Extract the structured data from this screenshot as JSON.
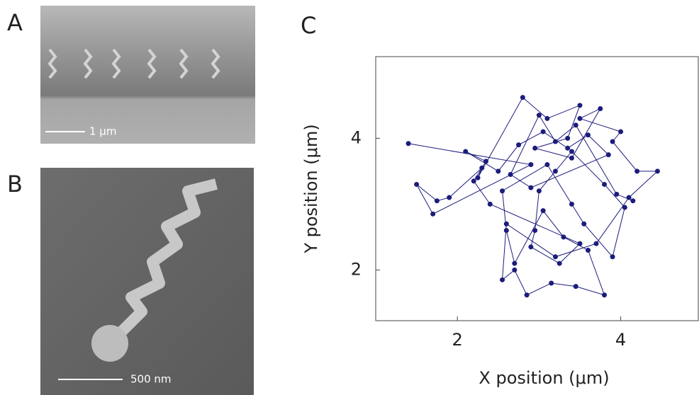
{
  "figure": {
    "panels": [
      {
        "label": "A",
        "scale_bar": "1 μm"
      },
      {
        "label": "B",
        "scale_bar": "500 nm"
      },
      {
        "label": "C"
      }
    ]
  },
  "chart_data": {
    "type": "line",
    "markers": true,
    "color": "#1c1c7c",
    "xlabel": "X position (μm)",
    "ylabel": "Y position (μm)",
    "x": [
      1.4,
      2.9,
      1.7,
      1.5,
      1.75,
      1.9,
      2.3,
      2.25,
      2.8,
      3.1,
      3.5,
      3.35,
      2.95,
      3.4,
      3.75,
      3.5,
      4.0,
      3.9,
      4.2,
      4.45,
      4.1,
      3.7,
      3.2,
      2.6,
      2.55,
      2.7,
      2.85,
      3.15,
      3.45,
      3.8,
      3.6,
      3.3,
      3.05,
      2.7,
      2.6,
      2.55,
      3.1,
      3.4,
      3.55,
      3.9,
      4.05,
      3.8,
      3.4,
      3.2,
      3.0,
      2.95,
      2.9,
      3.25,
      3.5,
      2.4,
      2.2,
      2.35,
      2.1,
      2.5,
      2.75,
      3.05,
      3.35,
      3.6,
      3.85,
      2.9,
      2.65,
      3.0,
      3.2,
      3.45,
      3.95,
      4.15
    ],
    "series": [
      {
        "values": [
          3.92,
          3.6,
          2.85,
          3.3,
          3.05,
          3.1,
          3.55,
          3.4,
          4.62,
          4.3,
          4.5,
          4.0,
          3.85,
          3.7,
          4.45,
          4.3,
          4.1,
          3.95,
          3.5,
          3.5,
          3.1,
          2.4,
          2.2,
          2.7,
          1.85,
          2.0,
          1.62,
          1.8,
          1.75,
          1.62,
          2.3,
          2.5,
          2.9,
          2.1,
          2.6,
          3.2,
          3.6,
          3.0,
          2.7,
          2.2,
          2.95,
          3.3,
          3.8,
          3.5,
          3.2,
          2.6,
          2.35,
          2.1,
          2.4,
          3.0,
          3.35,
          3.65,
          3.8,
          3.5,
          3.9,
          4.1,
          3.85,
          4.05,
          3.75,
          3.25,
          3.45,
          4.35,
          3.95,
          4.2,
          3.15,
          3.05
        ]
      }
    ],
    "xlim": [
      1,
      4.95
    ],
    "ylim": [
      1.23,
      5.24
    ],
    "xticks": [
      2,
      4
    ],
    "yticks": [
      2,
      4
    ]
  }
}
